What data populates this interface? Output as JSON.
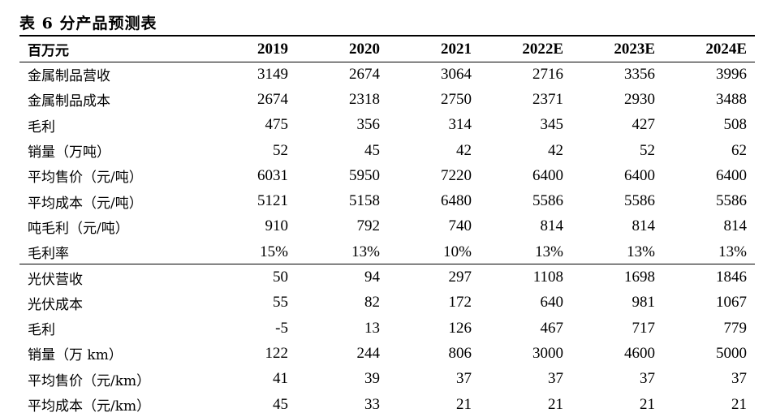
{
  "title": "表 6 分产品预测表",
  "header": [
    "百万元",
    "2019",
    "2020",
    "2021",
    "2022E",
    "2023E",
    "2024E"
  ],
  "metal_rows": [
    [
      "金属制品营收",
      "3149",
      "2674",
      "3064",
      "2716",
      "3356",
      "3996"
    ],
    [
      "金属制品成本",
      "2674",
      "2318",
      "2750",
      "2371",
      "2930",
      "3488"
    ],
    [
      "毛利",
      "475",
      "356",
      "314",
      "345",
      "427",
      "508"
    ],
    [
      "销量（万吨）",
      "52",
      "45",
      "42",
      "42",
      "52",
      "62"
    ],
    [
      "平均售价（元/吨）",
      "6031",
      "5950",
      "7220",
      "6400",
      "6400",
      "6400"
    ],
    [
      "平均成本（元/吨）",
      "5121",
      "5158",
      "6480",
      "5586",
      "5586",
      "5586"
    ],
    [
      "吨毛利（元/吨）",
      "910",
      "792",
      "740",
      "814",
      "814",
      "814"
    ],
    [
      "毛利率",
      "15%",
      "13%",
      "10%",
      "13%",
      "13%",
      "13%"
    ]
  ],
  "pv_rows": [
    [
      "光伏营收",
      "50",
      "94",
      "297",
      "1108",
      "1698",
      "1846"
    ],
    [
      "光伏成本",
      "55",
      "82",
      "172",
      "640",
      "981",
      "1067"
    ],
    [
      "毛利",
      "-5",
      "13",
      "126",
      "467",
      "717",
      "779"
    ],
    [
      "销量（万 km）",
      "122",
      "244",
      "806",
      "3000",
      "4600",
      "5000"
    ],
    [
      "平均售价（元/km）",
      "41",
      "39",
      "37",
      "37",
      "37",
      "37"
    ],
    [
      "平均成本（元/km）",
      "45",
      "33",
      "21",
      "21",
      "21",
      "21"
    ]
  ]
}
